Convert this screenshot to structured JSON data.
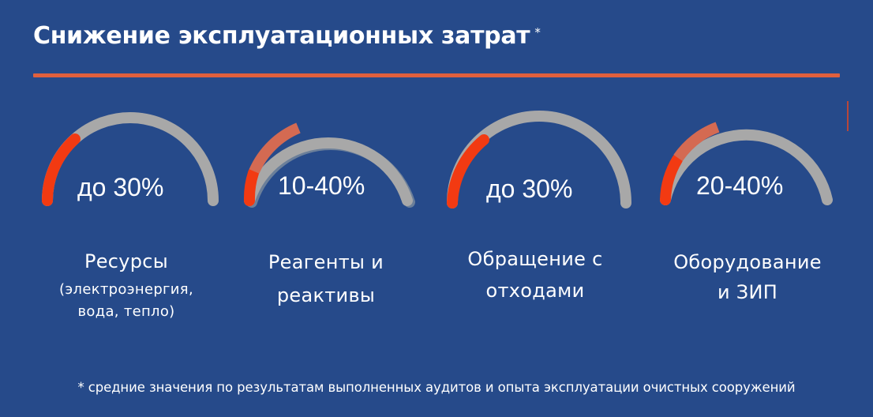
{
  "title": "Снижение эксплуатационных затрат",
  "title_marker": "*",
  "colors": {
    "background": "#264a8a",
    "rule": "#e0603d",
    "track": "#a8a8a8",
    "accent_primary": "#f23a12",
    "accent_secondary": "#d46a52"
  },
  "gauges": [
    {
      "value": "до 30%",
      "label": "Ресурсы",
      "sublabel": "(электроэнергия,\nвода, тепло)"
    },
    {
      "value": "10-40%",
      "label": "Реагенты и\nреактивы",
      "sublabel": ""
    },
    {
      "value": "до 30%",
      "label": "Обращение с\nотходами",
      "sublabel": ""
    },
    {
      "value": "20-40%",
      "label": "Оборудование\nи ЗИП",
      "sublabel": ""
    }
  ],
  "footnote": "* средние значения по результатам выполненных аудитов и опыта эксплуатации очистных сооружений"
}
